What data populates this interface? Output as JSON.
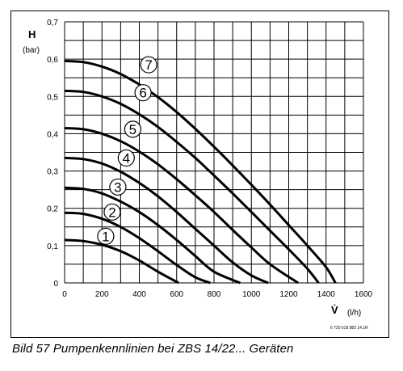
{
  "chart_data": {
    "type": "line",
    "y_title": "H",
    "y_unit": "(bar)",
    "x_title": "V̇",
    "x_unit": "(l/h)",
    "xlim": [
      0,
      1600
    ],
    "ylim": [
      0,
      0.7
    ],
    "x_ticks": [
      "0",
      "200",
      "400",
      "600",
      "800",
      "1000",
      "1200",
      "1400",
      "1600"
    ],
    "y_ticks": [
      "0",
      "0,1",
      "0,2",
      "0,3",
      "0,4",
      "0,5",
      "0,6",
      "0,7"
    ],
    "grid": true,
    "series": [
      {
        "name": "1",
        "points": [
          [
            0,
            0.115
          ],
          [
            100,
            0.112
          ],
          [
            200,
            0.102
          ],
          [
            300,
            0.085
          ],
          [
            400,
            0.06
          ],
          [
            500,
            0.03
          ],
          [
            610,
            0
          ]
        ]
      },
      {
        "name": "2",
        "points": [
          [
            0,
            0.188
          ],
          [
            100,
            0.185
          ],
          [
            200,
            0.172
          ],
          [
            300,
            0.15
          ],
          [
            400,
            0.12
          ],
          [
            500,
            0.085
          ],
          [
            600,
            0.048
          ],
          [
            700,
            0.015
          ],
          [
            780,
            0
          ]
        ]
      },
      {
        "name": "3",
        "points": [
          [
            0,
            0.255
          ],
          [
            100,
            0.252
          ],
          [
            200,
            0.24
          ],
          [
            300,
            0.218
          ],
          [
            400,
            0.19
          ],
          [
            500,
            0.155
          ],
          [
            600,
            0.115
          ],
          [
            700,
            0.072
          ],
          [
            800,
            0.03
          ],
          [
            940,
            0
          ]
        ]
      },
      {
        "name": "4",
        "points": [
          [
            0,
            0.335
          ],
          [
            100,
            0.332
          ],
          [
            200,
            0.32
          ],
          [
            300,
            0.298
          ],
          [
            400,
            0.268
          ],
          [
            500,
            0.232
          ],
          [
            600,
            0.19
          ],
          [
            700,
            0.145
          ],
          [
            800,
            0.1
          ],
          [
            900,
            0.055
          ],
          [
            1000,
            0.02
          ],
          [
            1090,
            0
          ]
        ]
      },
      {
        "name": "5",
        "points": [
          [
            0,
            0.415
          ],
          [
            100,
            0.412
          ],
          [
            200,
            0.4
          ],
          [
            300,
            0.38
          ],
          [
            400,
            0.352
          ],
          [
            500,
            0.318
          ],
          [
            600,
            0.278
          ],
          [
            700,
            0.235
          ],
          [
            800,
            0.19
          ],
          [
            900,
            0.142
          ],
          [
            1000,
            0.095
          ],
          [
            1100,
            0.05
          ],
          [
            1250,
            0
          ]
        ]
      },
      {
        "name": "6",
        "points": [
          [
            0,
            0.515
          ],
          [
            100,
            0.512
          ],
          [
            200,
            0.5
          ],
          [
            300,
            0.48
          ],
          [
            400,
            0.452
          ],
          [
            500,
            0.418
          ],
          [
            600,
            0.378
          ],
          [
            700,
            0.335
          ],
          [
            800,
            0.288
          ],
          [
            900,
            0.24
          ],
          [
            1000,
            0.19
          ],
          [
            1100,
            0.14
          ],
          [
            1200,
            0.09
          ],
          [
            1300,
            0.038
          ],
          [
            1360,
            0
          ]
        ]
      },
      {
        "name": "7",
        "points": [
          [
            0,
            0.595
          ],
          [
            100,
            0.592
          ],
          [
            200,
            0.58
          ],
          [
            300,
            0.56
          ],
          [
            400,
            0.532
          ],
          [
            500,
            0.498
          ],
          [
            600,
            0.458
          ],
          [
            700,
            0.413
          ],
          [
            800,
            0.365
          ],
          [
            900,
            0.315
          ],
          [
            1000,
            0.263
          ],
          [
            1100,
            0.21
          ],
          [
            1200,
            0.155
          ],
          [
            1300,
            0.1
          ],
          [
            1400,
            0.042
          ],
          [
            1450,
            0
          ]
        ]
      }
    ],
    "curve_labels": [
      {
        "text": "1",
        "x": 220,
        "y": 0.125
      },
      {
        "text": "2",
        "x": 255,
        "y": 0.19
      },
      {
        "text": "3",
        "x": 285,
        "y": 0.257
      },
      {
        "text": "4",
        "x": 330,
        "y": 0.335
      },
      {
        "text": "5",
        "x": 365,
        "y": 0.412
      },
      {
        "text": "6",
        "x": 420,
        "y": 0.51
      },
      {
        "text": "7",
        "x": 450,
        "y": 0.585
      }
    ],
    "code": "6 720 618 882 14.1R"
  },
  "caption": "Bild 57   Pumpenkennlinien bei ZBS 14/22... Geräten"
}
